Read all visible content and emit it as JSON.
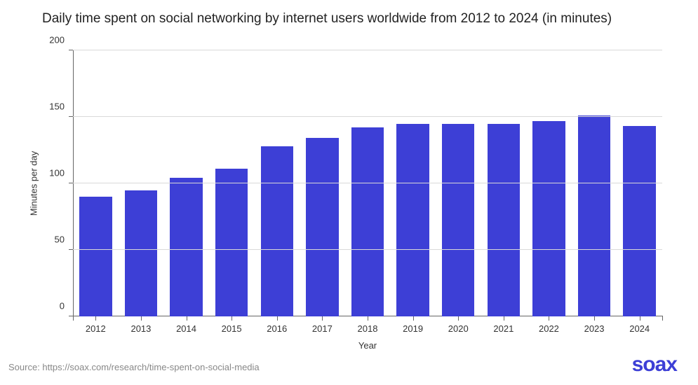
{
  "title": "Daily time spent on social networking by internet users worldwide from 2012 to 2024 (in minutes)",
  "source": "Source: https://soax.com/research/time-spent-on-social-media",
  "brand": "soax",
  "chart": {
    "type": "bar",
    "xlabel": "Year",
    "ylabel": "Minutes per day",
    "categories": [
      "2012",
      "2013",
      "2014",
      "2015",
      "2016",
      "2017",
      "2018",
      "2019",
      "2020",
      "2021",
      "2022",
      "2023",
      "2024"
    ],
    "values": [
      90,
      95,
      104,
      111,
      128,
      134,
      142,
      145,
      145,
      145,
      147,
      151,
      143
    ],
    "ylim": [
      0,
      200
    ],
    "yticks": [
      0,
      50,
      100,
      150,
      200
    ],
    "bar_color": "#3d3fd6",
    "background_color": "#ffffff",
    "grid_color": "#d9d9d9",
    "axis_color": "#666666",
    "text_color": "#333333",
    "brand_color": "#3d3fd6",
    "bar_width_ratio": 0.72,
    "title_fontsize": 19,
    "label_fontsize": 13,
    "tick_fontsize": 13
  }
}
